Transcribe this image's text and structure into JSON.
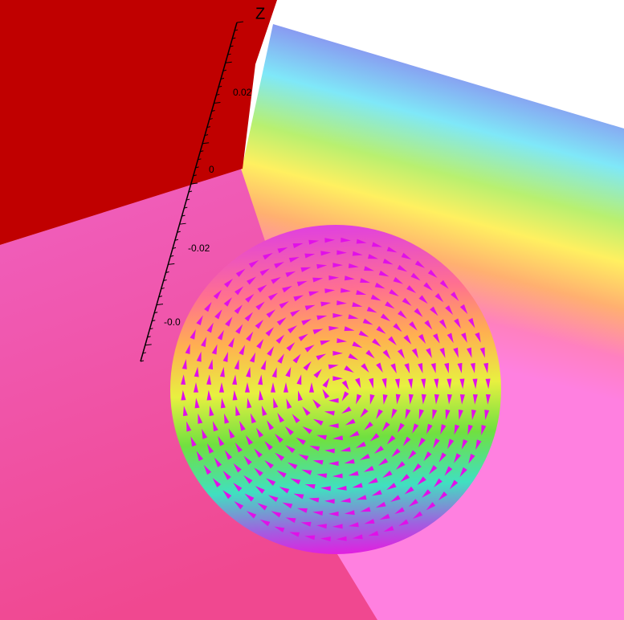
{
  "axis": {
    "label": "Z",
    "ticks": [
      "0.02",
      "0",
      "-0.02",
      "-0.0"
    ]
  }
}
